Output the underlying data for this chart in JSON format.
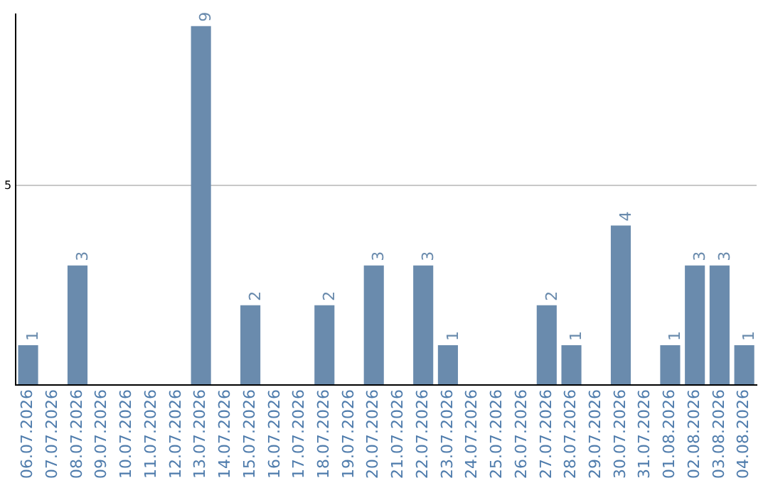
{
  "chart_data": {
    "type": "bar",
    "categories": [
      "06.07.2026",
      "07.07.2026",
      "08.07.2026",
      "09.07.2026",
      "10.07.2026",
      "11.07.2026",
      "12.07.2026",
      "13.07.2026",
      "14.07.2026",
      "15.07.2026",
      "16.07.2026",
      "17.07.2026",
      "18.07.2026",
      "19.07.2026",
      "20.07.2026",
      "21.07.2026",
      "22.07.2026",
      "23.07.2026",
      "24.07.2026",
      "25.07.2026",
      "26.07.2026",
      "27.07.2026",
      "28.07.2026",
      "29.07.2026",
      "30.07.2026",
      "31.07.2026",
      "01.08.2026",
      "02.08.2026",
      "03.08.2026",
      "04.08.2026"
    ],
    "values": [
      1,
      0,
      3,
      0,
      0,
      0,
      0,
      9,
      0,
      2,
      0,
      0,
      2,
      0,
      3,
      0,
      3,
      1,
      0,
      0,
      0,
      2,
      1,
      0,
      4,
      0,
      1,
      3,
      3,
      1
    ],
    "value_labels": [
      "1",
      null,
      "3",
      null,
      null,
      null,
      null,
      "9",
      null,
      "2",
      null,
      null,
      "2",
      null,
      "3",
      null,
      "3",
      "1",
      null,
      null,
      null,
      "2",
      "1",
      null,
      "4",
      null,
      "1",
      "3",
      "3",
      "1"
    ],
    "color": "#6a8bad",
    "ylim": [
      0,
      9.3
    ],
    "yticks": [
      {
        "value": 0,
        "label": null
      },
      5
    ],
    "grid": "y",
    "legend": false
  }
}
